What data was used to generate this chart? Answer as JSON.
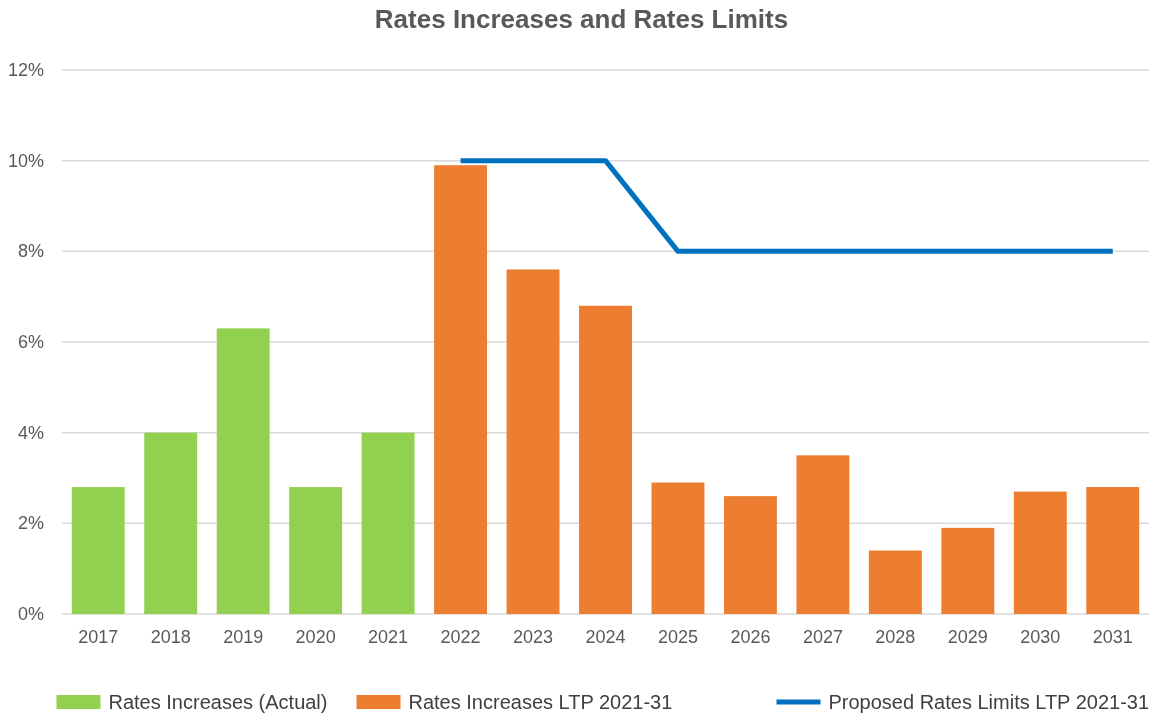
{
  "chart_data": {
    "type": "bar",
    "title": "Rates Increases and Rates Limits",
    "categories": [
      "2017",
      "2018",
      "2019",
      "2020",
      "2021",
      "2022",
      "2023",
      "2024",
      "2025",
      "2026",
      "2027",
      "2028",
      "2029",
      "2030",
      "2031"
    ],
    "series": [
      {
        "name": "Rates Increases (Actual)",
        "color": "#92d050",
        "values": [
          2.8,
          4.0,
          6.3,
          2.8,
          4.0,
          null,
          null,
          null,
          null,
          null,
          null,
          null,
          null,
          null,
          null
        ]
      },
      {
        "name": "Rates Increases LTP 2021-31",
        "color": "#ed7d31",
        "values": [
          null,
          null,
          null,
          null,
          null,
          9.9,
          7.6,
          6.8,
          2.9,
          2.6,
          3.5,
          1.4,
          1.9,
          2.7,
          2.8
        ]
      },
      {
        "name": "Proposed Rates Limits LTP 2021-31",
        "type": "line",
        "color": "#0070c0",
        "values": [
          null,
          null,
          null,
          null,
          null,
          10,
          10,
          10,
          8,
          8,
          8,
          8,
          8,
          8,
          8
        ]
      }
    ],
    "ylim": [
      0,
      12
    ],
    "yticks": [
      {
        "value": 0,
        "label": "0%"
      },
      {
        "value": 2,
        "label": "2%"
      },
      {
        "value": 4,
        "label": "4%"
      },
      {
        "value": 6,
        "label": "6%"
      },
      {
        "value": 8,
        "label": "8%"
      },
      {
        "value": 10,
        "label": "10%"
      },
      {
        "value": 12,
        "label": "12%"
      }
    ],
    "grid": "y",
    "legend": "bottom"
  }
}
